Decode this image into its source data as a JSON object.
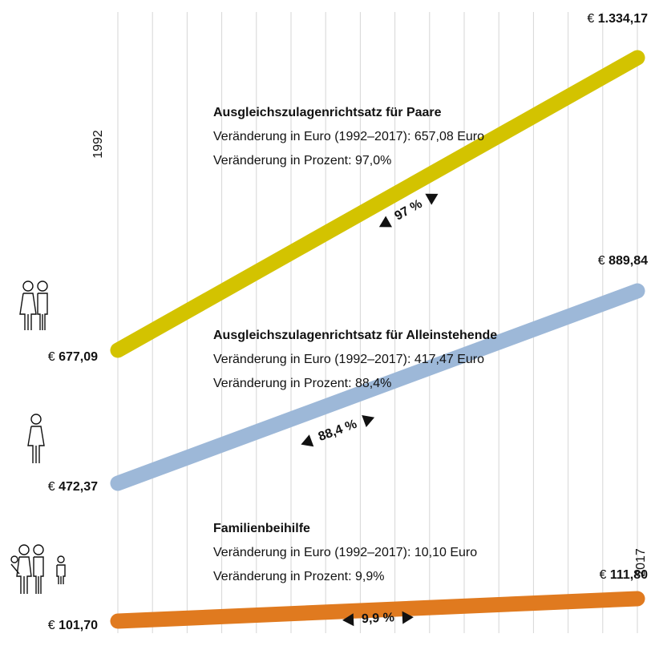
{
  "chart_data": {
    "type": "line",
    "x": [
      "1992",
      "2017"
    ],
    "currency": "€",
    "series": [
      {
        "name": "Ausgleichszulagenrichtsatz für Paare",
        "color": "#d3c300",
        "values": [
          677.09,
          1334.17
        ],
        "value_labels": [
          "677,09",
          "1.334,17"
        ],
        "change_euro": "Veränderung in Euro (1992–2017): 657,08 Euro",
        "change_percent": "Veränderung in Prozent: 97,0%",
        "change_label": "97 %"
      },
      {
        "name": "Ausgleichszulagenrichtsatz für Alleinstehende",
        "color": "#9db8d8",
        "values": [
          472.37,
          889.84
        ],
        "value_labels": [
          "472,37",
          "889,84"
        ],
        "change_euro": "Veränderung in Euro (1992–2017): 417,47 Euro",
        "change_percent": "Veränderung in Prozent: 88,4%",
        "change_label": "88,4 %"
      },
      {
        "name": "Familienbeihilfe",
        "color": "#e07a1f",
        "values": [
          101.7,
          111.8
        ],
        "value_labels": [
          "101,70",
          "111,80"
        ],
        "change_euro": "Veränderung in Euro (1992–2017): 10,10 Euro",
        "change_percent": "Veränderung in Prozent: 9,9%",
        "change_label": "9,9 %"
      }
    ]
  }
}
